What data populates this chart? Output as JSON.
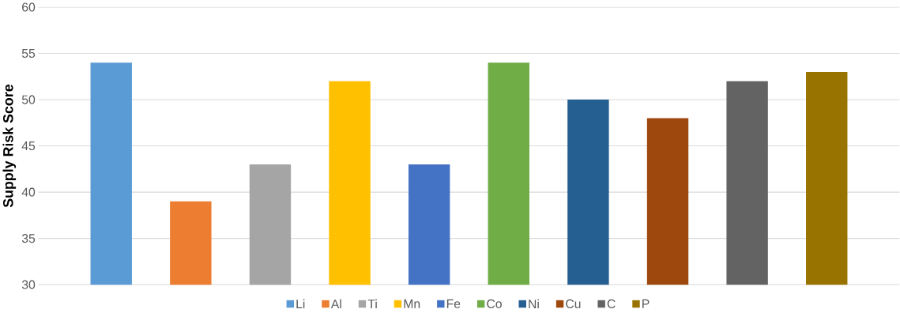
{
  "chart_data": {
    "type": "bar",
    "ylabel": "Supply Risk Score",
    "categories": [
      null
    ],
    "series": [
      {
        "name": "Li",
        "color": "#5b9bd5",
        "values": [
          54
        ]
      },
      {
        "name": "Al",
        "color": "#ed7d31",
        "values": [
          39
        ]
      },
      {
        "name": "Ti",
        "color": "#a5a5a5",
        "values": [
          43
        ]
      },
      {
        "name": "Mn",
        "color": "#ffc000",
        "values": [
          52
        ]
      },
      {
        "name": "Fe",
        "color": "#4472c4",
        "values": [
          43
        ]
      },
      {
        "name": "Co",
        "color": "#70ad47",
        "values": [
          54
        ]
      },
      {
        "name": "Ni",
        "color": "#255e91",
        "values": [
          50
        ]
      },
      {
        "name": "Cu",
        "color": "#9e480e",
        "values": [
          48
        ]
      },
      {
        "name": "C",
        "color": "#636363",
        "values": [
          52
        ]
      },
      {
        "name": "P",
        "color": "#997300",
        "values": [
          53
        ]
      }
    ],
    "ylim": [
      30,
      60
    ],
    "yticks": [
      30,
      35,
      40,
      45,
      50,
      55,
      60
    ],
    "grid": "y",
    "legend": "bottom"
  }
}
